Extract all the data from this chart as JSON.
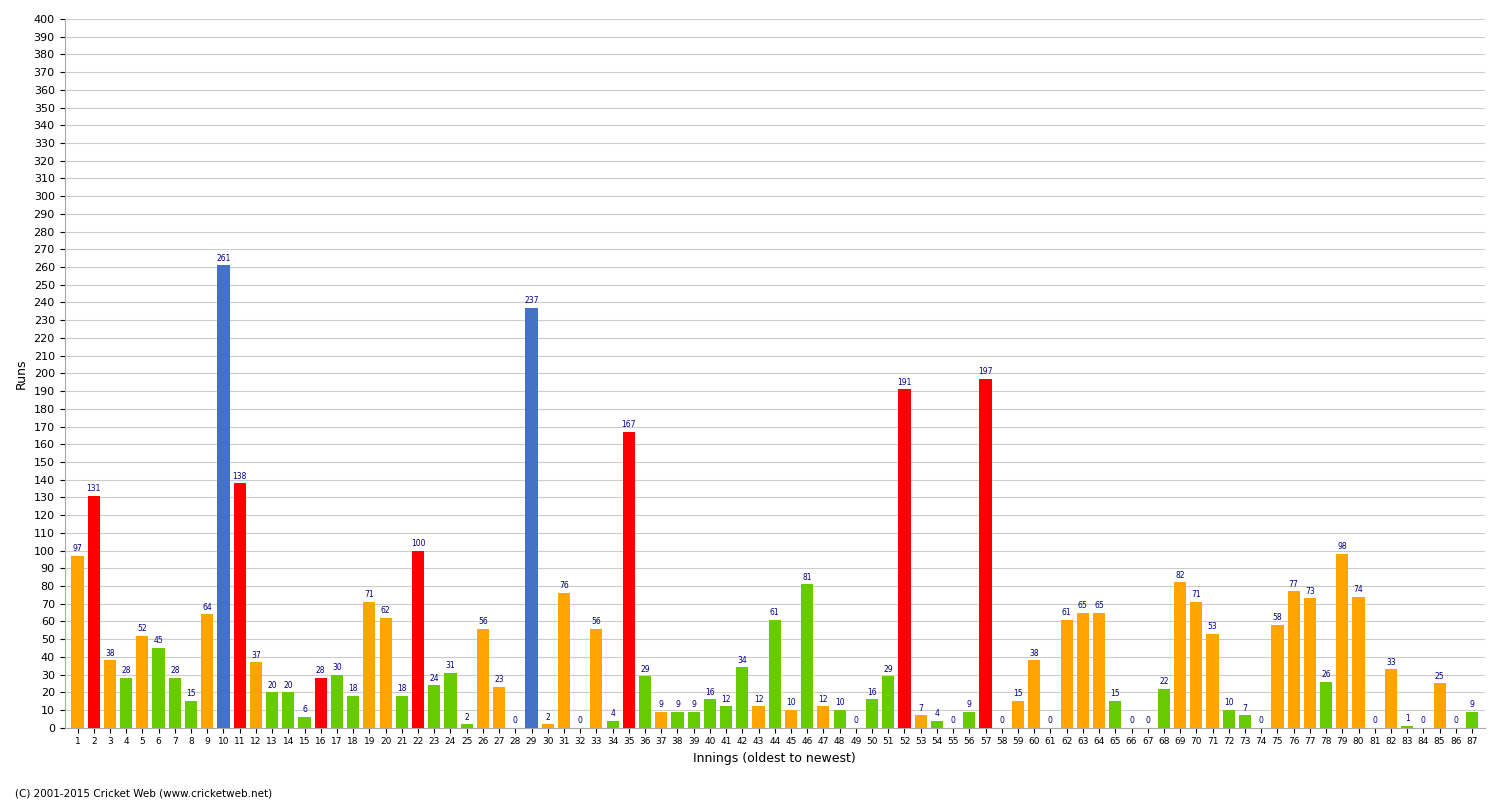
{
  "xlabel": "Innings (oldest to newest)",
  "ylabel": "Runs",
  "footer": "(C) 2001-2015 Cricket Web (www.cricketweb.net)",
  "background_color": "#ffffff",
  "grid_color": "#cccccc",
  "innings": [
    1,
    2,
    3,
    4,
    5,
    6,
    7,
    8,
    9,
    10,
    11,
    12,
    13,
    14,
    15,
    16,
    17,
    18,
    19,
    20,
    21,
    22,
    23,
    24,
    25,
    26,
    27,
    28,
    29,
    30,
    31,
    32,
    33,
    34,
    35,
    36,
    37,
    38,
    39,
    40,
    41,
    42,
    43,
    44,
    45,
    46,
    47,
    48,
    49,
    50,
    51,
    52,
    53,
    54,
    55,
    56,
    57,
    58,
    59,
    60,
    61,
    62,
    63,
    64,
    65,
    66,
    67,
    68,
    69,
    70,
    71,
    72,
    73,
    74,
    75,
    76,
    77,
    78,
    79,
    80,
    81,
    82,
    83,
    84,
    85,
    86,
    87
  ],
  "scores": [
    97,
    131,
    38,
    28,
    52,
    45,
    28,
    15,
    64,
    261,
    138,
    37,
    20,
    20,
    6,
    28,
    30,
    18,
    71,
    62,
    18,
    100,
    24,
    31,
    2,
    56,
    23,
    0,
    237,
    2,
    76,
    0,
    56,
    4,
    167,
    29,
    9,
    9,
    9,
    16,
    12,
    34,
    12,
    61,
    10,
    81,
    12,
    10,
    0,
    16,
    29,
    191,
    7,
    4,
    0,
    9,
    197,
    0,
    15,
    38,
    0,
    61,
    65,
    65,
    15,
    0,
    0,
    22,
    82,
    71,
    53,
    10,
    7,
    0,
    58,
    77,
    73,
    26,
    98,
    74,
    0,
    33,
    1,
    0,
    25,
    0,
    9
  ],
  "bar_colors": [
    "#FFA500",
    "#FF0000",
    "#FFA500",
    "#66CC00",
    "#FFA500",
    "#66CC00",
    "#66CC00",
    "#66CC00",
    "#FFA500",
    "#4472C4",
    "#FF0000",
    "#FFA500",
    "#66CC00",
    "#66CC00",
    "#66CC00",
    "#FF0000",
    "#66CC00",
    "#66CC00",
    "#FFA500",
    "#FFA500",
    "#66CC00",
    "#FF0000",
    "#66CC00",
    "#66CC00",
    "#66CC00",
    "#FFA500",
    "#FFA500",
    "#66CC00",
    "#4472C4",
    "#FFA500",
    "#FFA500",
    "#66CC00",
    "#FFA500",
    "#66CC00",
    "#FF0000",
    "#66CC00",
    "#FFA500",
    "#66CC00",
    "#66CC00",
    "#66CC00",
    "#66CC00",
    "#66CC00",
    "#FFA500",
    "#66CC00",
    "#FFA500",
    "#66CC00",
    "#FFA500",
    "#66CC00",
    "#66CC00",
    "#66CC00",
    "#66CC00",
    "#FF0000",
    "#FFA500",
    "#66CC00",
    "#66CC00",
    "#66CC00",
    "#FF0000",
    "#66CC00",
    "#FFA500",
    "#FFA500",
    "#66CC00",
    "#FFA500",
    "#FFA500",
    "#FFA500",
    "#66CC00",
    "#66CC00",
    "#66CC00",
    "#66CC00",
    "#FFA500",
    "#FFA500",
    "#FFA500",
    "#66CC00",
    "#66CC00",
    "#66CC00",
    "#FFA500",
    "#FFA500",
    "#FFA500",
    "#66CC00",
    "#FFA500",
    "#FFA500",
    "#66CC00",
    "#FFA500",
    "#66CC00",
    "#66CC00",
    "#FFA500",
    "#66CC00",
    "#66CC00"
  ],
  "ylim": [
    0,
    400
  ],
  "yticks": [
    0,
    10,
    20,
    30,
    40,
    50,
    60,
    70,
    80,
    90,
    100,
    110,
    120,
    130,
    140,
    150,
    160,
    170,
    180,
    190,
    200,
    210,
    220,
    230,
    240,
    250,
    260,
    270,
    280,
    290,
    300,
    310,
    320,
    330,
    340,
    350,
    360,
    370,
    380,
    390,
    400
  ],
  "label_color": "#00008B"
}
